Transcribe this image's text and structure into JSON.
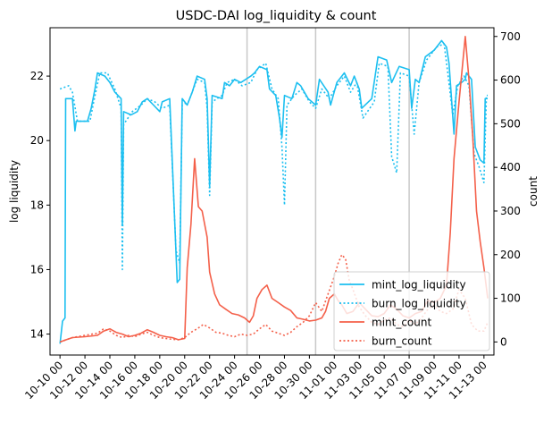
{
  "chart_data": {
    "type": "line",
    "title": "USDC-DAI log_liquidity & count",
    "ylabel_left": "log liquidity",
    "ylabel_right": "count",
    "xlabel": "",
    "x_tick_labels": [
      "10-10 00",
      "10-12 00",
      "10-14 00",
      "10-16 00",
      "10-18 00",
      "10-20 00",
      "10-22 00",
      "10-24 00",
      "10-26 00",
      "10-28 00",
      "10-30 00",
      "11-01 00",
      "11-03 00",
      "11-05 00",
      "11-07 00",
      "11-09 00",
      "11-11 00",
      "11-13 00"
    ],
    "x_range_days": [
      -0.8,
      34.8
    ],
    "ylim_left": [
      13.35,
      23.5
    ],
    "yticks_left": [
      14,
      16,
      18,
      20,
      22
    ],
    "ylim_right": [
      -30,
      720
    ],
    "yticks_right": [
      0,
      100,
      200,
      300,
      400,
      500,
      600,
      700
    ],
    "vlines_days": [
      15,
      20.5,
      28
    ],
    "legend": {
      "position": "lower-right",
      "entries": [
        "mint_log_liquidity",
        "burn_log_liquidity",
        "mint_count",
        "burn_count"
      ]
    },
    "series": [
      {
        "name": "mint_log_liquidity",
        "axis": "left",
        "color": "#1cbff0",
        "dash": "solid",
        "points": [
          [
            0,
            13.7
          ],
          [
            0.2,
            14.4
          ],
          [
            0.4,
            14.5
          ],
          [
            0.45,
            21.3
          ],
          [
            1,
            21.3
          ],
          [
            1.2,
            20.3
          ],
          [
            1.3,
            20.6
          ],
          [
            2.2,
            20.6
          ],
          [
            2.5,
            21
          ],
          [
            2.8,
            21.6
          ],
          [
            3,
            22.1
          ],
          [
            3.6,
            22
          ],
          [
            4,
            21.8
          ],
          [
            4.4,
            21.5
          ],
          [
            4.9,
            21.3
          ],
          [
            5,
            17.4
          ],
          [
            5.1,
            20.9
          ],
          [
            5.7,
            20.8
          ],
          [
            6.2,
            20.9
          ],
          [
            6.6,
            21.2
          ],
          [
            7,
            21.3
          ],
          [
            7.5,
            21.1
          ],
          [
            8,
            20.9
          ],
          [
            8.2,
            21.2
          ],
          [
            8.8,
            21.3
          ],
          [
            9.4,
            15.6
          ],
          [
            9.6,
            15.7
          ],
          [
            9.8,
            21.3
          ],
          [
            10.2,
            21.1
          ],
          [
            10.6,
            21.5
          ],
          [
            11,
            22
          ],
          [
            11.6,
            21.9
          ],
          [
            11.8,
            21.3
          ],
          [
            12,
            18.6
          ],
          [
            12.2,
            21.4
          ],
          [
            13,
            21.3
          ],
          [
            13.2,
            21.8
          ],
          [
            13.6,
            21.7
          ],
          [
            14,
            21.9
          ],
          [
            14.5,
            21.8
          ],
          [
            15.3,
            22
          ],
          [
            15.6,
            22.1
          ],
          [
            16,
            22.3
          ],
          [
            16.6,
            22.2
          ],
          [
            16.8,
            21.6
          ],
          [
            17.3,
            21.4
          ],
          [
            17.6,
            20.7
          ],
          [
            17.8,
            20.1
          ],
          [
            18,
            21.4
          ],
          [
            18.6,
            21.3
          ],
          [
            19,
            21.8
          ],
          [
            19.3,
            21.7
          ],
          [
            19.9,
            21.3
          ],
          [
            20.5,
            21.1
          ],
          [
            20.8,
            21.9
          ],
          [
            21.5,
            21.5
          ],
          [
            21.7,
            21.1
          ],
          [
            22.2,
            21.8
          ],
          [
            22.8,
            22.1
          ],
          [
            23.3,
            21.7
          ],
          [
            23.6,
            22
          ],
          [
            24,
            21.6
          ],
          [
            24.2,
            21
          ],
          [
            25,
            21.3
          ],
          [
            25.5,
            22.6
          ],
          [
            26.2,
            22.5
          ],
          [
            26.6,
            21.8
          ],
          [
            27.2,
            22.3
          ],
          [
            28,
            22.2
          ],
          [
            28.2,
            21
          ],
          [
            28.5,
            21.9
          ],
          [
            28.8,
            21.8
          ],
          [
            29.3,
            22.6
          ],
          [
            30,
            22.8
          ],
          [
            30.6,
            23.1
          ],
          [
            31,
            22.9
          ],
          [
            31.2,
            22.4
          ],
          [
            31.4,
            21.3
          ],
          [
            31.6,
            20.2
          ],
          [
            31.8,
            21.7
          ],
          [
            32.2,
            21.8
          ],
          [
            32.5,
            21.9
          ],
          [
            32.6,
            22.1
          ],
          [
            33,
            21.9
          ],
          [
            33.3,
            19.8
          ],
          [
            33.7,
            19.4
          ],
          [
            34,
            19.3
          ],
          [
            34.1,
            21.3
          ],
          [
            34.3,
            21.3
          ]
        ]
      },
      {
        "name": "burn_log_liquidity",
        "axis": "left",
        "color": "#1cbff0",
        "dash": "dotted",
        "points": [
          [
            0,
            21.6
          ],
          [
            0.7,
            21.7
          ],
          [
            1,
            21.5
          ],
          [
            1.4,
            20.6
          ],
          [
            2.4,
            20.6
          ],
          [
            2.7,
            21.2
          ],
          [
            3.2,
            22.1
          ],
          [
            3.8,
            22.1
          ],
          [
            4.4,
            21.6
          ],
          [
            4.9,
            21
          ],
          [
            5,
            16
          ],
          [
            5.1,
            20.5
          ],
          [
            5.8,
            20.9
          ],
          [
            6.5,
            21.1
          ],
          [
            7,
            21.3
          ],
          [
            7.6,
            21.2
          ],
          [
            8.2,
            21
          ],
          [
            8.8,
            21.1
          ],
          [
            9.3,
            16.6
          ],
          [
            9.6,
            16.2
          ],
          [
            9.8,
            21.1
          ],
          [
            10.3,
            21.2
          ],
          [
            11,
            21.9
          ],
          [
            11.6,
            21.8
          ],
          [
            11.8,
            21
          ],
          [
            12,
            18.3
          ],
          [
            12.2,
            21.2
          ],
          [
            13,
            21.4
          ],
          [
            13.4,
            21.8
          ],
          [
            14,
            21.9
          ],
          [
            14.6,
            21.7
          ],
          [
            15.3,
            21.8
          ],
          [
            15.8,
            22.2
          ],
          [
            16.5,
            22.4
          ],
          [
            17,
            21.6
          ],
          [
            17.5,
            21.3
          ],
          [
            17.8,
            19.8
          ],
          [
            18,
            18
          ],
          [
            18.2,
            21.1
          ],
          [
            18.8,
            21.4
          ],
          [
            19.4,
            21.6
          ],
          [
            20,
            21.2
          ],
          [
            20.5,
            21
          ],
          [
            21,
            21.6
          ],
          [
            21.6,
            21.3
          ],
          [
            22.2,
            21.7
          ],
          [
            22.8,
            22
          ],
          [
            23.3,
            21.5
          ],
          [
            23.8,
            21.8
          ],
          [
            24.3,
            20.7
          ],
          [
            25.2,
            21.2
          ],
          [
            25.6,
            22.4
          ],
          [
            26.3,
            22.3
          ],
          [
            26.6,
            19.5
          ],
          [
            27,
            19
          ],
          [
            27.3,
            22.1
          ],
          [
            28,
            22
          ],
          [
            28.4,
            20.2
          ],
          [
            28.8,
            21.8
          ],
          [
            29.4,
            22.5
          ],
          [
            30.2,
            22.9
          ],
          [
            30.8,
            23
          ],
          [
            31.1,
            22.1
          ],
          [
            31.5,
            20.8
          ],
          [
            31.9,
            21.7
          ],
          [
            32.4,
            22
          ],
          [
            32.8,
            21.7
          ],
          [
            33.2,
            19.6
          ],
          [
            33.6,
            19.2
          ],
          [
            34,
            18.7
          ],
          [
            34.2,
            21.4
          ],
          [
            34.3,
            21.4
          ]
        ]
      },
      {
        "name": "mint_count",
        "axis": "right",
        "color": "#f4604a",
        "dash": "solid",
        "points": [
          [
            0,
            0
          ],
          [
            0.5,
            5
          ],
          [
            1,
            10
          ],
          [
            2,
            12
          ],
          [
            3,
            15
          ],
          [
            3.5,
            25
          ],
          [
            4,
            30
          ],
          [
            4.5,
            22
          ],
          [
            5,
            18
          ],
          [
            5.5,
            12
          ],
          [
            6,
            15
          ],
          [
            6.5,
            20
          ],
          [
            7,
            28
          ],
          [
            7.5,
            22
          ],
          [
            8,
            15
          ],
          [
            8.5,
            12
          ],
          [
            9,
            10
          ],
          [
            9.5,
            5
          ],
          [
            10,
            8
          ],
          [
            10.2,
            170
          ],
          [
            10.5,
            270
          ],
          [
            10.8,
            420
          ],
          [
            11.1,
            310
          ],
          [
            11.4,
            300
          ],
          [
            11.8,
            240
          ],
          [
            12,
            160
          ],
          [
            12.4,
            110
          ],
          [
            12.8,
            85
          ],
          [
            13.3,
            75
          ],
          [
            13.8,
            65
          ],
          [
            14.3,
            62
          ],
          [
            14.8,
            55
          ],
          [
            15.2,
            45
          ],
          [
            15.5,
            60
          ],
          [
            15.8,
            100
          ],
          [
            16.2,
            120
          ],
          [
            16.6,
            130
          ],
          [
            17,
            100
          ],
          [
            17.5,
            90
          ],
          [
            18,
            80
          ],
          [
            18.5,
            72
          ],
          [
            19,
            55
          ],
          [
            19.5,
            52
          ],
          [
            20,
            48
          ],
          [
            20.5,
            50
          ],
          [
            21,
            55
          ],
          [
            21.3,
            70
          ],
          [
            21.6,
            100
          ],
          [
            22,
            110
          ],
          [
            22.3,
            95
          ],
          [
            22.6,
            85
          ],
          [
            23,
            65
          ],
          [
            23.5,
            70
          ],
          [
            24,
            90
          ],
          [
            24.5,
            75
          ],
          [
            25,
            60
          ],
          [
            25.5,
            58
          ],
          [
            26,
            65
          ],
          [
            26.5,
            85
          ],
          [
            27,
            75
          ],
          [
            27.5,
            60
          ],
          [
            28,
            55
          ],
          [
            28.5,
            65
          ],
          [
            29,
            70
          ],
          [
            29.5,
            95
          ],
          [
            30,
            90
          ],
          [
            30.5,
            100
          ],
          [
            31,
            130
          ],
          [
            31.3,
            250
          ],
          [
            31.6,
            420
          ],
          [
            32,
            550
          ],
          [
            32.3,
            640
          ],
          [
            32.5,
            700
          ],
          [
            32.8,
            600
          ],
          [
            33.1,
            470
          ],
          [
            33.4,
            300
          ],
          [
            33.7,
            230
          ],
          [
            34,
            170
          ],
          [
            34.3,
            100
          ]
        ]
      },
      {
        "name": "burn_count",
        "axis": "right",
        "color": "#f4604a",
        "dash": "dotted",
        "points": [
          [
            0,
            0
          ],
          [
            0.5,
            5
          ],
          [
            1,
            10
          ],
          [
            2,
            15
          ],
          [
            3,
            20
          ],
          [
            3.5,
            30
          ],
          [
            4,
            25
          ],
          [
            4.5,
            15
          ],
          [
            5,
            10
          ],
          [
            5.5,
            15
          ],
          [
            6,
            12
          ],
          [
            6.5,
            18
          ],
          [
            7,
            22
          ],
          [
            7.5,
            15
          ],
          [
            8,
            10
          ],
          [
            8.5,
            8
          ],
          [
            9,
            6
          ],
          [
            9.5,
            5
          ],
          [
            10,
            10
          ],
          [
            10.5,
            22
          ],
          [
            11,
            30
          ],
          [
            11.5,
            40
          ],
          [
            12,
            32
          ],
          [
            12.5,
            22
          ],
          [
            13,
            20
          ],
          [
            13.5,
            15
          ],
          [
            14,
            12
          ],
          [
            14.5,
            18
          ],
          [
            15,
            15
          ],
          [
            15.5,
            18
          ],
          [
            16,
            30
          ],
          [
            16.5,
            40
          ],
          [
            17,
            25
          ],
          [
            17.5,
            20
          ],
          [
            18,
            15
          ],
          [
            18.5,
            22
          ],
          [
            19,
            35
          ],
          [
            19.5,
            45
          ],
          [
            20,
            60
          ],
          [
            20.5,
            90
          ],
          [
            21,
            70
          ],
          [
            21.5,
            110
          ],
          [
            22,
            150
          ],
          [
            22.3,
            180
          ],
          [
            22.6,
            200
          ],
          [
            22.9,
            190
          ],
          [
            23.2,
            140
          ],
          [
            23.5,
            120
          ],
          [
            24,
            80
          ],
          [
            24.5,
            60
          ],
          [
            25,
            45
          ],
          [
            25.5,
            40
          ],
          [
            26,
            50
          ],
          [
            26.5,
            55
          ],
          [
            27,
            40
          ],
          [
            27.5,
            35
          ],
          [
            28,
            50
          ],
          [
            28.5,
            40
          ],
          [
            29,
            55
          ],
          [
            29.5,
            75
          ],
          [
            30,
            85
          ],
          [
            30.5,
            70
          ],
          [
            31,
            65
          ],
          [
            31.5,
            75
          ],
          [
            32,
            120
          ],
          [
            32.5,
            100
          ],
          [
            33,
            40
          ],
          [
            33.5,
            25
          ],
          [
            34,
            25
          ],
          [
            34.3,
            45
          ]
        ]
      }
    ]
  }
}
